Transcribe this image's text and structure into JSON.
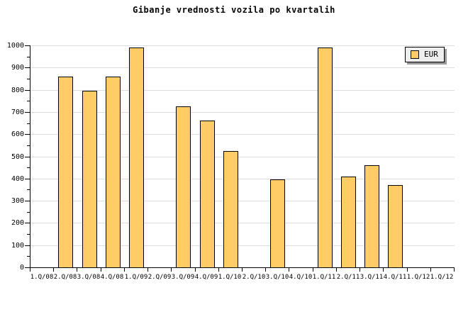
{
  "chart_data": {
    "type": "bar",
    "title": "Gibanje vrednosti vozila po kvartalih",
    "categories": [
      "1.Q/08",
      "2.Q/08",
      "3.Q/08",
      "4.Q/08",
      "1.Q/09",
      "2.Q/09",
      "3.Q/09",
      "4.Q/09",
      "1.Q/10",
      "2.Q/10",
      "3.Q/10",
      "4.Q/10",
      "1.Q/11",
      "2.Q/11",
      "3.Q/11",
      "4.Q/11",
      "1.Q/12",
      "1.Q/12"
    ],
    "series": [
      {
        "name": "EUR",
        "values": [
          null,
          860,
          795,
          860,
          990,
          null,
          725,
          660,
          525,
          null,
          395,
          null,
          990,
          410,
          460,
          370,
          null,
          null
        ]
      }
    ],
    "xlabel": "",
    "ylabel": "",
    "ylim": [
      0,
      1000
    ],
    "ytick_major_step": 100,
    "ytick_minor_step": 50,
    "grid": "horizontal",
    "legend_position": "top-right",
    "colors": {
      "bar_fill": "#FFCC66",
      "bar_border": "#000000",
      "gridline": "#DCDCDC",
      "axis": "#000000",
      "legend_background": "#EEEEEE",
      "legend_shadow": "#999999",
      "background": "#FFFFFF",
      "text": "#000000"
    }
  }
}
